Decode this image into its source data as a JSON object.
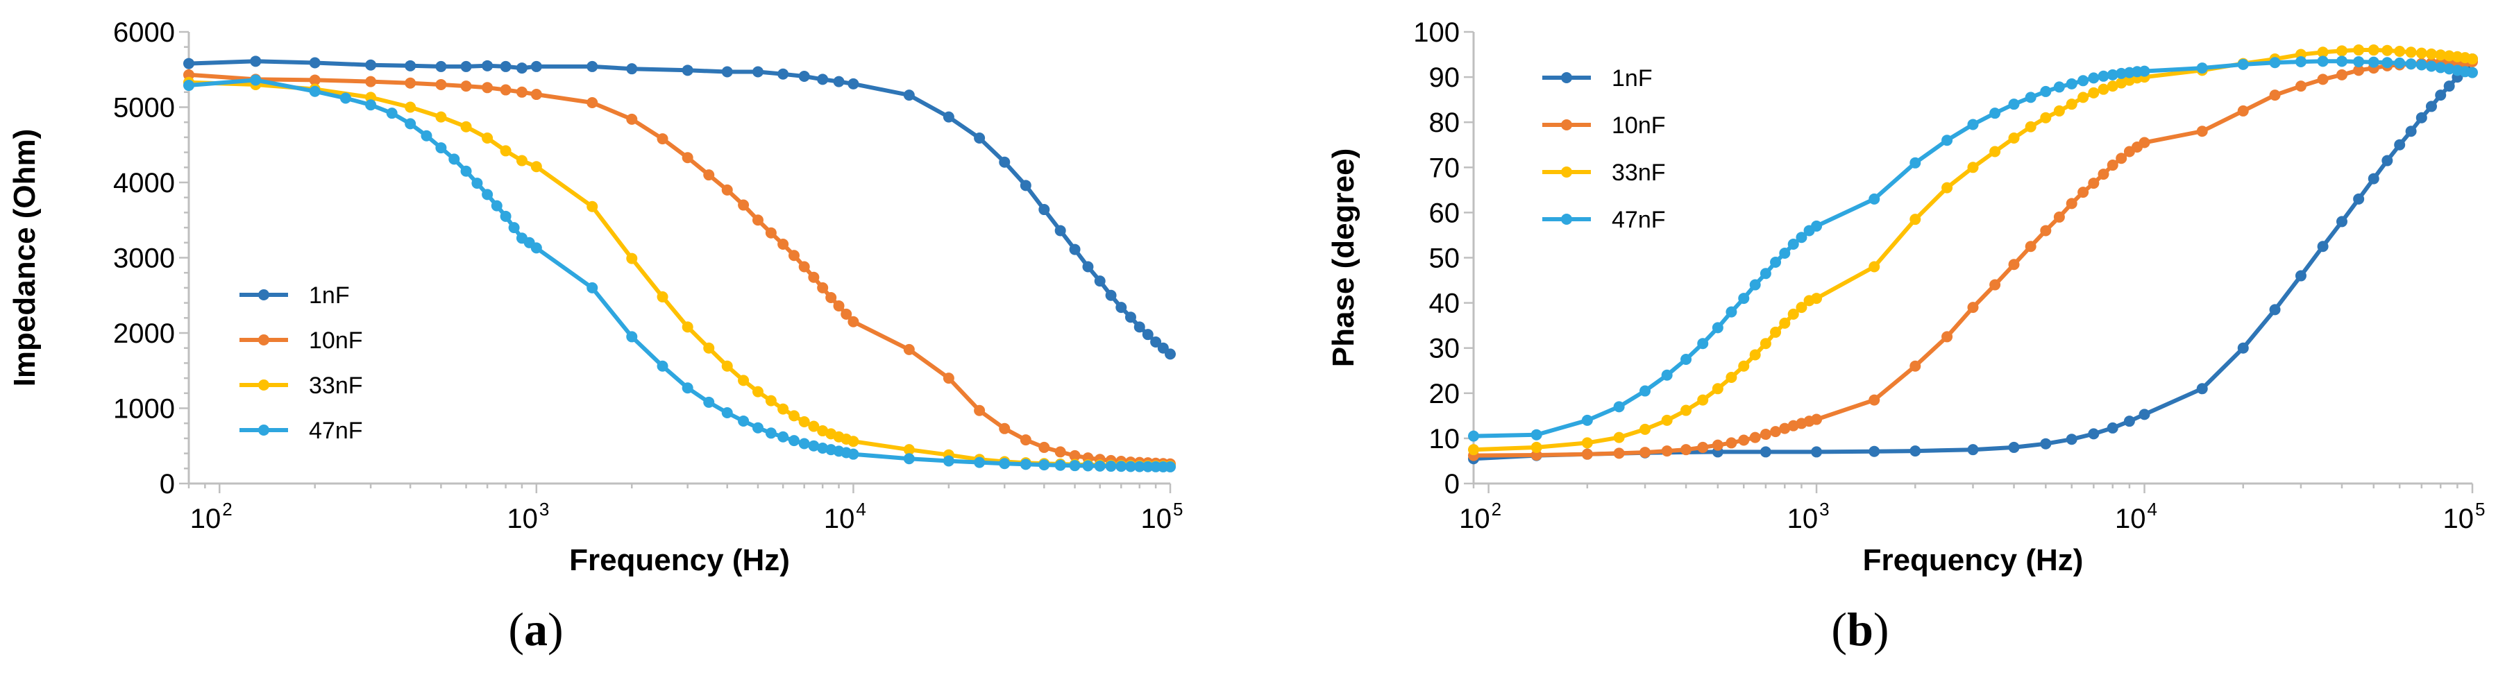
{
  "chart_data": [
    {
      "type": "line",
      "panel_label": "a",
      "xlabel": "Frequency (Hz)",
      "ylabel": "Impedance (Ohm)",
      "xscale": "log",
      "xlim": [
        80,
        100000
      ],
      "ylim": [
        0,
        6000
      ],
      "yticks": [
        0,
        1000,
        2000,
        3000,
        4000,
        5000,
        6000
      ],
      "xticks": [
        {
          "value": 100,
          "base": "10",
          "exp": "2"
        },
        {
          "value": 1000,
          "base": "10",
          "exp": "3"
        },
        {
          "value": 10000,
          "base": "10",
          "exp": "4"
        },
        {
          "value": 100000,
          "base": "10",
          "exp": "5"
        }
      ],
      "grid": false,
      "legend": "center-left",
      "series": [
        {
          "name": "1nF",
          "color": "#2e75b6",
          "x": [
            80,
            130,
            200,
            300,
            400,
            500,
            600,
            700,
            800,
            900,
            1000,
            1500,
            2000,
            3000,
            4000,
            5000,
            6000,
            7000,
            8000,
            9000,
            10000,
            15000,
            20000,
            25000,
            30000,
            35000,
            40000,
            45000,
            50000,
            55000,
            60000,
            65000,
            70000,
            75000,
            80000,
            85000,
            90000,
            95000,
            100000
          ],
          "y": [
            5580,
            5610,
            5590,
            5560,
            5550,
            5540,
            5540,
            5550,
            5540,
            5520,
            5540,
            5540,
            5510,
            5490,
            5470,
            5470,
            5440,
            5410,
            5370,
            5340,
            5310,
            5160,
            4870,
            4590,
            4270,
            3960,
            3640,
            3360,
            3110,
            2880,
            2690,
            2500,
            2340,
            2210,
            2080,
            1980,
            1880,
            1800,
            1720
          ]
        },
        {
          "name": "10nF",
          "color": "#ed7d31",
          "x": [
            80,
            130,
            200,
            300,
            400,
            500,
            600,
            700,
            800,
            900,
            1000,
            1500,
            2000,
            2500,
            3000,
            3500,
            4000,
            4500,
            5000,
            5500,
            6000,
            6500,
            7000,
            7500,
            8000,
            8500,
            9000,
            9500,
            10000,
            15000,
            20000,
            25000,
            30000,
            35000,
            40000,
            45000,
            50000,
            55000,
            60000,
            65000,
            70000,
            75000,
            80000,
            85000,
            90000,
            95000,
            100000
          ],
          "y": [
            5430,
            5370,
            5360,
            5340,
            5320,
            5300,
            5280,
            5260,
            5230,
            5200,
            5170,
            5060,
            4840,
            4580,
            4330,
            4100,
            3900,
            3700,
            3500,
            3330,
            3180,
            3030,
            2880,
            2740,
            2600,
            2470,
            2360,
            2250,
            2150,
            1780,
            1400,
            970,
            730,
            580,
            480,
            420,
            370,
            340,
            320,
            305,
            295,
            285,
            280,
            275,
            270,
            265,
            260
          ]
        },
        {
          "name": "33nF",
          "color": "#ffc000",
          "x": [
            80,
            130,
            200,
            300,
            400,
            500,
            600,
            700,
            800,
            900,
            1000,
            1500,
            2000,
            2500,
            3000,
            3500,
            4000,
            4500,
            5000,
            5500,
            6000,
            6500,
            7000,
            7500,
            8000,
            8500,
            9000,
            9500,
            10000,
            15000,
            20000,
            25000,
            30000,
            35000,
            40000,
            45000,
            50000,
            55000,
            60000,
            65000,
            70000,
            75000,
            80000,
            85000,
            90000,
            95000,
            100000
          ],
          "y": [
            5330,
            5300,
            5240,
            5130,
            5000,
            4870,
            4740,
            4590,
            4420,
            4290,
            4210,
            3680,
            2990,
            2480,
            2080,
            1800,
            1560,
            1370,
            1220,
            1100,
            990,
            900,
            820,
            760,
            700,
            660,
            620,
            590,
            560,
            450,
            380,
            320,
            290,
            275,
            265,
            258,
            252,
            248,
            245,
            242,
            240,
            238,
            236,
            235,
            234,
            233,
            232
          ]
        },
        {
          "name": "47nF",
          "color": "#2ea6df",
          "x": [
            80,
            130,
            200,
            250,
            300,
            350,
            400,
            450,
            500,
            550,
            600,
            650,
            700,
            750,
            800,
            850,
            900,
            950,
            1000,
            1500,
            2000,
            2500,
            3000,
            3500,
            4000,
            4500,
            5000,
            5500,
            6000,
            6500,
            7000,
            7500,
            8000,
            8500,
            9000,
            9500,
            10000,
            15000,
            20000,
            25000,
            30000,
            35000,
            40000,
            45000,
            50000,
            55000,
            60000,
            65000,
            70000,
            75000,
            80000,
            85000,
            90000,
            95000,
            100000
          ],
          "y": [
            5290,
            5360,
            5210,
            5120,
            5030,
            4920,
            4780,
            4620,
            4460,
            4310,
            4150,
            3990,
            3840,
            3690,
            3550,
            3400,
            3260,
            3200,
            3130,
            2600,
            1950,
            1560,
            1270,
            1080,
            940,
            830,
            740,
            670,
            620,
            570,
            530,
            500,
            470,
            450,
            430,
            410,
            390,
            330,
            300,
            280,
            265,
            255,
            248,
            242,
            238,
            235,
            232,
            230,
            228,
            226,
            225,
            224,
            223,
            222,
            222
          ]
        }
      ]
    },
    {
      "type": "line",
      "panel_label": "b",
      "xlabel": "Frequency (Hz)",
      "ylabel": "Phase (degree)",
      "xscale": "log",
      "xlim": [
        90,
        100000
      ],
      "ylim": [
        0,
        100
      ],
      "yticks": [
        0,
        10,
        20,
        30,
        40,
        50,
        60,
        70,
        80,
        90,
        100
      ],
      "xticks": [
        {
          "value": 100,
          "base": "10",
          "exp": "2"
        },
        {
          "value": 1000,
          "base": "10",
          "exp": "3"
        },
        {
          "value": 10000,
          "base": "10",
          "exp": "4"
        },
        {
          "value": 100000,
          "base": "10",
          "exp": "5"
        }
      ],
      "grid": false,
      "legend": "top-left",
      "series": [
        {
          "name": "1nF",
          "color": "#2e75b6",
          "x": [
            90,
            140,
            200,
            300,
            500,
            700,
            1000,
            1500,
            2000,
            3000,
            4000,
            5000,
            6000,
            7000,
            8000,
            9000,
            10000,
            15000,
            20000,
            25000,
            30000,
            35000,
            40000,
            45000,
            50000,
            55000,
            60000,
            65000,
            70000,
            75000,
            80000,
            85000,
            90000,
            95000,
            100000
          ],
          "y": [
            5.5,
            6.2,
            6.5,
            6.8,
            7.0,
            7.0,
            7.0,
            7.1,
            7.2,
            7.5,
            8.0,
            8.8,
            9.8,
            11.0,
            12.3,
            13.8,
            15.3,
            21.0,
            30.0,
            38.5,
            46.0,
            52.5,
            58.0,
            63.0,
            67.5,
            71.5,
            75.0,
            78.0,
            81.0,
            83.5,
            86.0,
            88.0,
            90.0,
            92.0,
            94.0
          ]
        },
        {
          "name": "10nF",
          "color": "#ed7d31",
          "x": [
            90,
            140,
            200,
            250,
            300,
            350,
            400,
            450,
            500,
            550,
            600,
            650,
            700,
            750,
            800,
            850,
            900,
            950,
            1000,
            1500,
            2000,
            2500,
            3000,
            3500,
            4000,
            4500,
            5000,
            5500,
            6000,
            6500,
            7000,
            7500,
            8000,
            8500,
            9000,
            9500,
            10000,
            15000,
            20000,
            25000,
            30000,
            35000,
            40000,
            45000,
            50000,
            55000,
            60000,
            65000,
            70000,
            75000,
            80000,
            85000,
            90000,
            95000,
            100000
          ],
          "y": [
            6.2,
            6.3,
            6.5,
            6.7,
            6.9,
            7.2,
            7.5,
            8.0,
            8.5,
            9.0,
            9.6,
            10.2,
            10.9,
            11.5,
            12.2,
            12.8,
            13.3,
            13.8,
            14.2,
            18.5,
            26.0,
            32.5,
            39.0,
            44.0,
            48.5,
            52.5,
            56.0,
            59.0,
            62.0,
            64.5,
            66.5,
            68.5,
            70.5,
            72.0,
            73.5,
            74.5,
            75.5,
            78.0,
            82.5,
            86.0,
            88.0,
            89.5,
            90.5,
            91.5,
            92.0,
            92.5,
            92.7,
            92.9,
            93.0,
            93.1,
            93.2,
            93.2,
            93.3,
            93.3,
            93.4
          ]
        },
        {
          "name": "33nF",
          "color": "#ffc000",
          "x": [
            90,
            140,
            200,
            250,
            300,
            350,
            400,
            450,
            500,
            550,
            600,
            650,
            700,
            750,
            800,
            850,
            900,
            950,
            1000,
            1500,
            2000,
            2500,
            3000,
            3500,
            4000,
            4500,
            5000,
            5500,
            6000,
            6500,
            7000,
            7500,
            8000,
            8500,
            9000,
            9500,
            10000,
            15000,
            20000,
            25000,
            30000,
            35000,
            40000,
            45000,
            50000,
            55000,
            60000,
            65000,
            70000,
            75000,
            80000,
            85000,
            90000,
            95000,
            100000
          ],
          "y": [
            7.5,
            8.0,
            9.0,
            10.2,
            12.0,
            14.0,
            16.2,
            18.5,
            21.0,
            23.5,
            26.0,
            28.5,
            31.0,
            33.5,
            35.5,
            37.5,
            39.0,
            40.5,
            41.0,
            48.0,
            58.5,
            65.5,
            70.0,
            73.5,
            76.5,
            79.0,
            81.0,
            82.5,
            84.0,
            85.5,
            86.5,
            87.3,
            88.0,
            88.7,
            89.3,
            89.8,
            90.0,
            91.5,
            93.0,
            94.0,
            95.0,
            95.5,
            95.8,
            96.0,
            96.0,
            95.9,
            95.7,
            95.5,
            95.3,
            95.1,
            94.9,
            94.7,
            94.5,
            94.3,
            94.0
          ]
        },
        {
          "name": "47nF",
          "color": "#2ea6df",
          "x": [
            90,
            140,
            200,
            250,
            300,
            350,
            400,
            450,
            500,
            550,
            600,
            650,
            700,
            750,
            800,
            850,
            900,
            950,
            1000,
            1500,
            2000,
            2500,
            3000,
            3500,
            4000,
            4500,
            5000,
            5500,
            6000,
            6500,
            7000,
            7500,
            8000,
            8500,
            9000,
            9500,
            10000,
            15000,
            20000,
            25000,
            30000,
            35000,
            40000,
            45000,
            50000,
            55000,
            60000,
            65000,
            70000,
            75000,
            80000,
            85000,
            90000,
            95000,
            100000
          ],
          "y": [
            10.5,
            10.8,
            14.0,
            17.0,
            20.5,
            24.0,
            27.5,
            31.0,
            34.5,
            38.0,
            41.0,
            44.0,
            46.5,
            49.0,
            51.0,
            53.0,
            54.5,
            56.0,
            57.0,
            63.0,
            71.0,
            76.0,
            79.5,
            82.0,
            84.0,
            85.5,
            86.8,
            87.8,
            88.5,
            89.2,
            89.8,
            90.2,
            90.5,
            90.8,
            91.0,
            91.2,
            91.3,
            92.0,
            92.8,
            93.2,
            93.4,
            93.5,
            93.5,
            93.4,
            93.3,
            93.2,
            93.1,
            92.9,
            92.7,
            92.4,
            92.1,
            91.8,
            91.5,
            91.2,
            91.0
          ]
        }
      ]
    }
  ]
}
